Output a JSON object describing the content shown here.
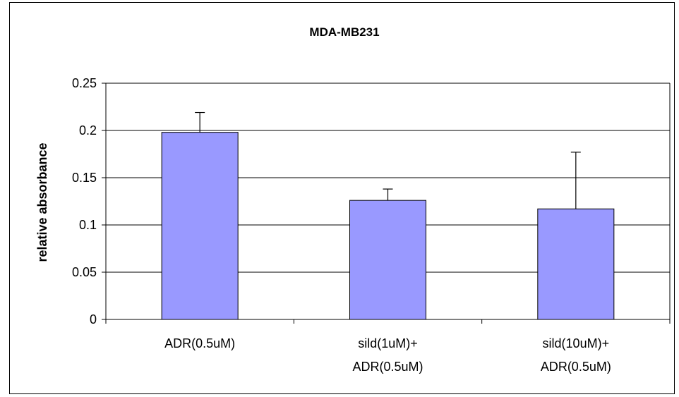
{
  "chart_data": {
    "type": "bar",
    "title": "MDA-MB231",
    "xlabel": "",
    "ylabel": "relative absorbance",
    "ylim": [
      0,
      0.25
    ],
    "yticks": [
      "0",
      "0.05",
      "0.1",
      "0.15",
      "0.2",
      "0.25"
    ],
    "categories": [
      [
        "ADR(0.5uM)"
      ],
      [
        "sild(1uM)+",
        "ADR(0.5uM)"
      ],
      [
        "sild(10uM)+",
        "ADR(0.5uM)"
      ]
    ],
    "values": [
      0.198,
      0.126,
      0.117
    ],
    "error_plus": [
      0.021,
      0.012,
      0.06
    ],
    "bar_color": "#9999ff",
    "grid": true,
    "legend": "none"
  }
}
